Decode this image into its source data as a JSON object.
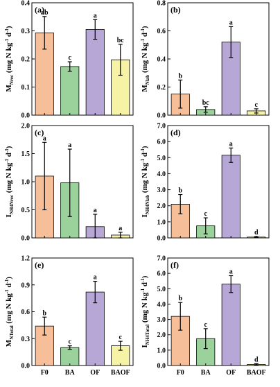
{
  "categories": [
    "F0",
    "BA",
    "OF",
    "BAOF"
  ],
  "colors": {
    "F0": "#f6bf99",
    "BA": "#9bd29b",
    "OF": "#b6a7d6",
    "BAOF": "#f6f3a6",
    "edge": "#000000"
  },
  "chart_data": [
    {
      "panel": "(a)",
      "type": "bar",
      "categories": [
        "F0",
        "BA",
        "OF",
        "BAOF"
      ],
      "values": [
        0.293,
        0.173,
        0.305,
        0.197
      ],
      "errors": [
        0.058,
        0.017,
        0.035,
        0.055
      ],
      "significance": [
        "ab",
        "c",
        "a",
        "bc"
      ],
      "ylim": [
        0,
        0.4
      ],
      "yticks": [
        0.0,
        0.1,
        0.2,
        0.3,
        0.4
      ],
      "ytick_labels": [
        "0.0",
        "0.1",
        "0.2",
        "0.3",
        "0.4"
      ],
      "ylabel": {
        "base": "M",
        "sub": "Nrec",
        "unit_pre": " (mg N kg",
        "sup1": "-1",
        "unit_mid": " d",
        "sup2": "-1",
        "unit_post": ")"
      }
    },
    {
      "panel": "(b)",
      "type": "bar",
      "categories": [
        "F0",
        "BA",
        "OF",
        "BAOF"
      ],
      "values": [
        0.15,
        0.04,
        0.52,
        0.03
      ],
      "errors": [
        0.1,
        0.02,
        0.11,
        0.015
      ],
      "significance": [
        "b",
        "bc",
        "a",
        "c"
      ],
      "ylim": [
        0,
        0.8
      ],
      "yticks": [
        0.0,
        0.2,
        0.4,
        0.6,
        0.8
      ],
      "ytick_labels": [
        "0.0",
        "0.2",
        "0.4",
        "0.6",
        "0.8"
      ],
      "ylabel": {
        "base": "M",
        "sub": "Nlab",
        "unit_pre": " (mg N kg",
        "sup1": "-1",
        "unit_mid": " d",
        "sup2": "-1",
        "unit_post": ")"
      }
    },
    {
      "panel": "(c)",
      "type": "bar",
      "categories": [
        "F0",
        "BA",
        "OF",
        "BAOF"
      ],
      "values": [
        1.1,
        0.98,
        0.2,
        0.05
      ],
      "errors": [
        0.6,
        0.6,
        0.22,
        0.05
      ],
      "significance": [
        "a",
        "a",
        "a",
        "a"
      ],
      "ylim": [
        0,
        2.0
      ],
      "yticks": [
        0.0,
        0.5,
        1.0,
        1.5,
        2.0
      ],
      "ytick_labels": [
        "0.0",
        "0.5",
        "1.0",
        "1.5",
        "2.0"
      ],
      "ylabel": {
        "base": "I",
        "sub": "NH4Nrec",
        "unit_pre": " (mg N kg",
        "sup1": "-1",
        "unit_mid": " d",
        "sup2": "-1",
        "unit_post": ")"
      }
    },
    {
      "panel": "(d)",
      "type": "bar",
      "categories": [
        "F0",
        "BA",
        "OF",
        "BAOF"
      ],
      "values": [
        2.1,
        0.75,
        5.15,
        0.05
      ],
      "errors": [
        0.6,
        0.5,
        0.45,
        0.03
      ],
      "significance": [
        "b",
        "c",
        "a",
        "d"
      ],
      "ylim": [
        0,
        7.0
      ],
      "yticks": [
        0.0,
        1.0,
        2.0,
        3.0,
        4.0,
        5.0,
        6.0,
        7.0
      ],
      "ytick_labels": [
        "0.0",
        "1.0",
        "2.0",
        "3.0",
        "4.0",
        "5.0",
        "6.0",
        "7.0"
      ],
      "ylabel": {
        "base": "I",
        "sub": "NH4Nlab",
        "unit_pre": " (mg N kg",
        "sup1": "-1",
        "unit_mid": " d",
        "sup2": "-1",
        "unit_post": ")"
      }
    },
    {
      "panel": "(e)",
      "type": "bar",
      "categories": [
        "F0",
        "BA",
        "OF",
        "BAOF"
      ],
      "values": [
        0.44,
        0.2,
        0.82,
        0.22
      ],
      "errors": [
        0.1,
        0.02,
        0.12,
        0.05
      ],
      "significance": [
        "b",
        "c",
        "a",
        "c"
      ],
      "ylim": [
        0,
        1.2
      ],
      "yticks": [
        0.0,
        0.3,
        0.6,
        0.9,
        1.2
      ],
      "ytick_labels": [
        "0.0",
        "0.3",
        "0.6",
        "0.9",
        "1.2"
      ],
      "ylabel": {
        "base": "M",
        "sub": "NTotal",
        "unit_pre": " (mg N kg",
        "sup1": "-1",
        "unit_mid": " d",
        "sup2": "-1",
        "unit_post": ")"
      }
    },
    {
      "panel": "(f)",
      "type": "bar",
      "categories": [
        "F0",
        "BA",
        "OF",
        "BAOF"
      ],
      "values": [
        3.2,
        1.75,
        5.3,
        0.07
      ],
      "errors": [
        0.9,
        0.65,
        0.55,
        0.05
      ],
      "significance": [
        "b",
        "c",
        "a",
        "d"
      ],
      "ylim": [
        0,
        7.0
      ],
      "yticks": [
        0.0,
        1.0,
        2.0,
        3.0,
        4.0,
        5.0,
        6.0,
        7.0
      ],
      "ytick_labels": [
        "0.0",
        "1.0",
        "2.0",
        "3.0",
        "4.0",
        "5.0",
        "6.0",
        "7.0"
      ],
      "ylabel": {
        "base": "I",
        "sub": "NH4Total",
        "unit_pre": " (mg N kg",
        "sup1": "-1",
        "unit_mid": " d",
        "sup2": "-1",
        "unit_post": ")"
      }
    }
  ]
}
